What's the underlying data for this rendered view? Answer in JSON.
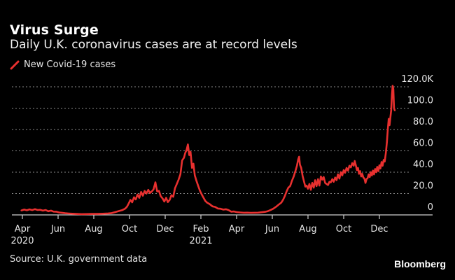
{
  "header": {
    "title": "Virus Surge",
    "subtitle": "Daily U.K. coronavirus cases are at record levels"
  },
  "footer": {
    "source": "Source: U.K. government data",
    "brand": "Bloomberg"
  },
  "colors": {
    "background": "#000000",
    "series": "#e8302f",
    "grid": "#8a8a8a",
    "axis": "#cfcfcf"
  },
  "chart_data": {
    "type": "line",
    "title": "Virus Surge",
    "subtitle": "Daily U.K. coronavirus cases are at record levels",
    "xlabel": "",
    "ylabel": "",
    "x_unit": "months since Apr 2020",
    "ylim": [
      0,
      120
    ],
    "y_unit": "thousands",
    "grid": true,
    "legend_position": "top-left",
    "y_ticks": [
      {
        "value": 0,
        "label": "0"
      },
      {
        "value": 20,
        "label": "20.0"
      },
      {
        "value": 40,
        "label": "40.0"
      },
      {
        "value": 60,
        "label": "60.0"
      },
      {
        "value": 80,
        "label": "80.0"
      },
      {
        "value": 100,
        "label": "100.0"
      },
      {
        "value": 120,
        "label": "120.0K"
      }
    ],
    "x_ticks": [
      {
        "value": 0,
        "label": "Apr",
        "year": "2020"
      },
      {
        "value": 2,
        "label": "Jun",
        "year": ""
      },
      {
        "value": 4,
        "label": "Aug",
        "year": ""
      },
      {
        "value": 6,
        "label": "Oct",
        "year": ""
      },
      {
        "value": 8,
        "label": "Dec",
        "year": ""
      },
      {
        "value": 10,
        "label": "Feb",
        "year": "2021"
      },
      {
        "value": 12,
        "label": "Apr",
        "year": ""
      },
      {
        "value": 14,
        "label": "Jun",
        "year": ""
      },
      {
        "value": 16,
        "label": "Aug",
        "year": ""
      },
      {
        "value": 18,
        "label": "Oct",
        "year": ""
      },
      {
        "value": 20,
        "label": "Dec",
        "year": ""
      }
    ],
    "xlim": [
      -0.1,
      22.4
    ],
    "series": [
      {
        "name": "New Covid-19 cases",
        "points": [
          [
            -0.05,
            4.2
          ],
          [
            0.1,
            5.0
          ],
          [
            0.25,
            4.3
          ],
          [
            0.4,
            5.2
          ],
          [
            0.55,
            4.5
          ],
          [
            0.7,
            5.4
          ],
          [
            0.85,
            4.6
          ],
          [
            1.0,
            4.8
          ],
          [
            1.15,
            4.0
          ],
          [
            1.3,
            4.6
          ],
          [
            1.45,
            3.4
          ],
          [
            1.6,
            4.0
          ],
          [
            1.75,
            3.1
          ],
          [
            1.9,
            3.0
          ],
          [
            2.05,
            2.3
          ],
          [
            2.2,
            2.0
          ],
          [
            2.4,
            1.6
          ],
          [
            2.6,
            1.3
          ],
          [
            2.8,
            1.1
          ],
          [
            3.0,
            0.9
          ],
          [
            3.3,
            0.7
          ],
          [
            3.6,
            0.8
          ],
          [
            3.9,
            0.9
          ],
          [
            4.2,
            0.9
          ],
          [
            4.5,
            1.1
          ],
          [
            4.8,
            1.4
          ],
          [
            5.0,
            1.7
          ],
          [
            5.2,
            2.6
          ],
          [
            5.4,
            3.6
          ],
          [
            5.6,
            4.5
          ],
          [
            5.75,
            5.8
          ],
          [
            5.85,
            7.5
          ],
          [
            5.95,
            10.5
          ],
          [
            6.05,
            14.0
          ],
          [
            6.15,
            11.8
          ],
          [
            6.25,
            16.5
          ],
          [
            6.35,
            14.5
          ],
          [
            6.45,
            19.0
          ],
          [
            6.55,
            16.0
          ],
          [
            6.65,
            21.5
          ],
          [
            6.75,
            18.0
          ],
          [
            6.85,
            22.5
          ],
          [
            6.95,
            20.0
          ],
          [
            7.05,
            23.5
          ],
          [
            7.15,
            20.5
          ],
          [
            7.25,
            22.0
          ],
          [
            7.35,
            24.0
          ],
          [
            7.45,
            30.5
          ],
          [
            7.55,
            22.0
          ],
          [
            7.65,
            22.5
          ],
          [
            7.75,
            17.5
          ],
          [
            7.85,
            15.5
          ],
          [
            7.95,
            12.5
          ],
          [
            8.05,
            16.0
          ],
          [
            8.15,
            12.0
          ],
          [
            8.25,
            14.0
          ],
          [
            8.35,
            18.5
          ],
          [
            8.45,
            17.0
          ],
          [
            8.55,
            25.0
          ],
          [
            8.65,
            29.0
          ],
          [
            8.75,
            33.0
          ],
          [
            8.85,
            38.0
          ],
          [
            8.95,
            51.0
          ],
          [
            9.05,
            53.5
          ],
          [
            9.12,
            58.0
          ],
          [
            9.2,
            61.0
          ],
          [
            9.27,
            66.0
          ],
          [
            9.35,
            56.0
          ],
          [
            9.42,
            59.0
          ],
          [
            9.5,
            44.0
          ],
          [
            9.58,
            48.0
          ],
          [
            9.66,
            37.0
          ],
          [
            9.75,
            32.0
          ],
          [
            9.85,
            27.0
          ],
          [
            9.95,
            22.5
          ],
          [
            10.05,
            19.0
          ],
          [
            10.15,
            16.0
          ],
          [
            10.25,
            13.0
          ],
          [
            10.35,
            11.5
          ],
          [
            10.5,
            10.0
          ],
          [
            10.65,
            8.0
          ],
          [
            10.8,
            7.5
          ],
          [
            10.95,
            6.0
          ],
          [
            11.1,
            5.8
          ],
          [
            11.25,
            5.0
          ],
          [
            11.4,
            5.3
          ],
          [
            11.55,
            4.5
          ],
          [
            11.7,
            3.0
          ],
          [
            11.85,
            3.2
          ],
          [
            12.0,
            2.6
          ],
          [
            12.2,
            2.3
          ],
          [
            12.4,
            2.0
          ],
          [
            12.6,
            2.1
          ],
          [
            12.8,
            1.9
          ],
          [
            13.0,
            2.0
          ],
          [
            13.2,
            2.1
          ],
          [
            13.4,
            2.5
          ],
          [
            13.6,
            2.9
          ],
          [
            13.75,
            3.5
          ],
          [
            13.9,
            4.5
          ],
          [
            14.05,
            5.8
          ],
          [
            14.2,
            7.5
          ],
          [
            14.35,
            9.5
          ],
          [
            14.5,
            11.5
          ],
          [
            14.6,
            14.0
          ],
          [
            14.7,
            17.5
          ],
          [
            14.8,
            22.0
          ],
          [
            14.9,
            25.5
          ],
          [
            15.0,
            27.0
          ],
          [
            15.1,
            32.0
          ],
          [
            15.2,
            36.0
          ],
          [
            15.3,
            41.5
          ],
          [
            15.38,
            46.0
          ],
          [
            15.45,
            52.0
          ],
          [
            15.5,
            54.5
          ],
          [
            15.55,
            47.0
          ],
          [
            15.62,
            44.0
          ],
          [
            15.7,
            36.5
          ],
          [
            15.78,
            31.0
          ],
          [
            15.85,
            26.5
          ],
          [
            15.92,
            27.5
          ],
          [
            16.0,
            24.5
          ],
          [
            16.08,
            29.0
          ],
          [
            16.16,
            23.5
          ],
          [
            16.24,
            30.0
          ],
          [
            16.32,
            25.5
          ],
          [
            16.4,
            32.5
          ],
          [
            16.48,
            27.0
          ],
          [
            16.56,
            33.5
          ],
          [
            16.64,
            27.5
          ],
          [
            16.72,
            36.0
          ],
          [
            16.8,
            33.0
          ],
          [
            16.88,
            35.5
          ],
          [
            16.96,
            30.0
          ],
          [
            17.04,
            29.0
          ],
          [
            17.12,
            28.0
          ],
          [
            17.2,
            31.0
          ],
          [
            17.28,
            30.5
          ],
          [
            17.36,
            33.5
          ],
          [
            17.44,
            31.0
          ],
          [
            17.52,
            35.0
          ],
          [
            17.6,
            32.5
          ],
          [
            17.68,
            38.0
          ],
          [
            17.76,
            34.0
          ],
          [
            17.84,
            40.0
          ],
          [
            17.92,
            37.0
          ],
          [
            18.0,
            42.0
          ],
          [
            18.08,
            39.5
          ],
          [
            18.16,
            44.0
          ],
          [
            18.24,
            41.5
          ],
          [
            18.32,
            46.0
          ],
          [
            18.4,
            44.5
          ],
          [
            18.48,
            48.5
          ],
          [
            18.56,
            46.0
          ],
          [
            18.62,
            50.5
          ],
          [
            18.68,
            46.5
          ],
          [
            18.74,
            42.0
          ],
          [
            18.8,
            44.0
          ],
          [
            18.86,
            38.5
          ],
          [
            18.92,
            41.0
          ],
          [
            18.98,
            36.0
          ],
          [
            19.04,
            38.5
          ],
          [
            19.1,
            35.0
          ],
          [
            19.16,
            34.0
          ],
          [
            19.22,
            30.0
          ],
          [
            19.28,
            33.5
          ],
          [
            19.34,
            34.5
          ],
          [
            19.4,
            38.0
          ],
          [
            19.46,
            35.5
          ],
          [
            19.52,
            40.0
          ],
          [
            19.58,
            37.0
          ],
          [
            19.64,
            41.5
          ],
          [
            19.7,
            38.0
          ],
          [
            19.76,
            43.0
          ],
          [
            19.82,
            40.0
          ],
          [
            19.88,
            45.0
          ],
          [
            19.94,
            41.0
          ],
          [
            20.0,
            46.5
          ],
          [
            20.06,
            43.5
          ],
          [
            20.12,
            49.5
          ],
          [
            20.18,
            46.0
          ],
          [
            20.24,
            51.5
          ],
          [
            20.3,
            50.0
          ],
          [
            20.36,
            58.0
          ],
          [
            20.42,
            68.0
          ],
          [
            20.47,
            80.0
          ],
          [
            20.52,
            90.0
          ],
          [
            20.57,
            84.0
          ],
          [
            20.62,
            92.0
          ],
          [
            20.66,
            98.0
          ],
          [
            20.7,
            112.0
          ],
          [
            20.74,
            121.0
          ],
          [
            20.78,
            118.0
          ],
          [
            20.82,
            100.0
          ],
          [
            20.86,
            98.0
          ]
        ]
      }
    ]
  }
}
